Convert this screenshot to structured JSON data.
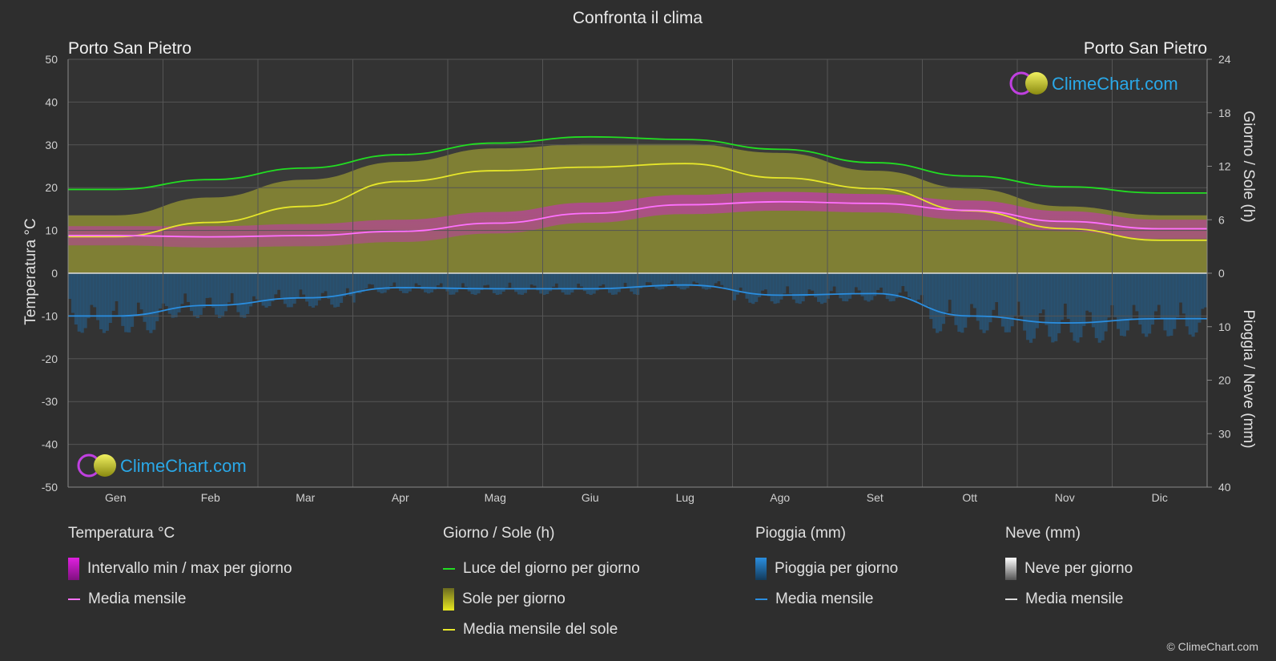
{
  "title": "Confronta il clima",
  "location_left": "Porto San Pietro",
  "location_right": "Porto San Pietro",
  "brand": "ClimeChart.com",
  "copyright": "© ClimeChart.com",
  "colors": {
    "daylight": "#22dd22",
    "sunshine_fill": "#b8b830",
    "sunshine_line": "#e6e62a",
    "temp_range": "#d81fd8",
    "temp_mean": "#ff70ff",
    "rain_fill": "#1f6fae",
    "rain_line": "#2a8ee0",
    "snow": "#dddddd",
    "brand_text": "#2aa8e8"
  },
  "chart_data": {
    "type": "area",
    "months": [
      "Gen",
      "Feb",
      "Mar",
      "Apr",
      "Mag",
      "Giu",
      "Lug",
      "Ago",
      "Set",
      "Ott",
      "Nov",
      "Dic"
    ],
    "axis_left": {
      "label": "Temperatura °C",
      "min": -50,
      "max": 50,
      "ticks": [
        50,
        40,
        30,
        20,
        10,
        0,
        -10,
        -20,
        -30,
        -40,
        -50
      ]
    },
    "axis_right_top": {
      "label": "Giorno / Sole (h)",
      "min": 0,
      "max": 24,
      "ticks": [
        24,
        18,
        12,
        6,
        0
      ]
    },
    "axis_right_bottom": {
      "label": "Pioggia / Neve (mm)",
      "min": 0,
      "max": 40,
      "ticks": [
        0,
        10,
        20,
        30,
        40
      ]
    },
    "series": [
      {
        "name": "Luce del giorno per giorno",
        "unit": "h",
        "values": [
          9.4,
          10.5,
          11.8,
          13.3,
          14.6,
          15.3,
          15.0,
          13.9,
          12.4,
          10.9,
          9.7,
          9.0
        ]
      },
      {
        "name": "Media mensile del sole",
        "unit": "h",
        "values": [
          4.1,
          5.7,
          7.5,
          10.3,
          11.5,
          11.9,
          12.3,
          10.7,
          9.5,
          7.0,
          5.0,
          3.7
        ]
      },
      {
        "name": "Sole per giorno (max)",
        "unit": "h",
        "values": [
          6.5,
          8.5,
          10.5,
          12.5,
          14.0,
          14.5,
          14.5,
          13.5,
          11.5,
          9.5,
          7.5,
          6.5
        ]
      },
      {
        "name": "Media mensile",
        "unit": "°C",
        "values": [
          8.8,
          8.5,
          8.8,
          9.8,
          11.7,
          14.0,
          16.0,
          16.7,
          16.3,
          14.7,
          12.1,
          10.4
        ]
      },
      {
        "name": "Intervallo min / max per giorno (min)",
        "unit": "°C",
        "values": [
          6.5,
          6.0,
          6.3,
          7.3,
          9.3,
          11.8,
          13.8,
          14.6,
          14.2,
          12.5,
          9.8,
          8.0
        ]
      },
      {
        "name": "Intervallo min / max per giorno (max)",
        "unit": "°C",
        "values": [
          11.0,
          11.0,
          11.5,
          12.5,
          14.3,
          16.5,
          18.3,
          19.0,
          18.5,
          17.0,
          14.5,
          12.5
        ]
      },
      {
        "name": "Pioggia media mensile",
        "unit": "mm",
        "values": [
          8.0,
          6.0,
          4.6,
          2.7,
          2.9,
          2.9,
          2.2,
          4.1,
          3.8,
          8.0,
          9.3,
          8.5
        ]
      }
    ],
    "grid": true
  },
  "legend": {
    "temp": {
      "title": "Temperatura °C",
      "items": [
        "Intervallo min / max per giorno",
        "Media mensile"
      ]
    },
    "sun": {
      "title": "Giorno / Sole (h)",
      "items": [
        "Luce del giorno per giorno",
        "Sole per giorno",
        "Media mensile del sole"
      ]
    },
    "rain": {
      "title": "Pioggia (mm)",
      "items": [
        "Pioggia per giorno",
        "Media mensile"
      ]
    },
    "snow": {
      "title": "Neve (mm)",
      "items": [
        "Neve per giorno",
        "Media mensile"
      ]
    }
  }
}
